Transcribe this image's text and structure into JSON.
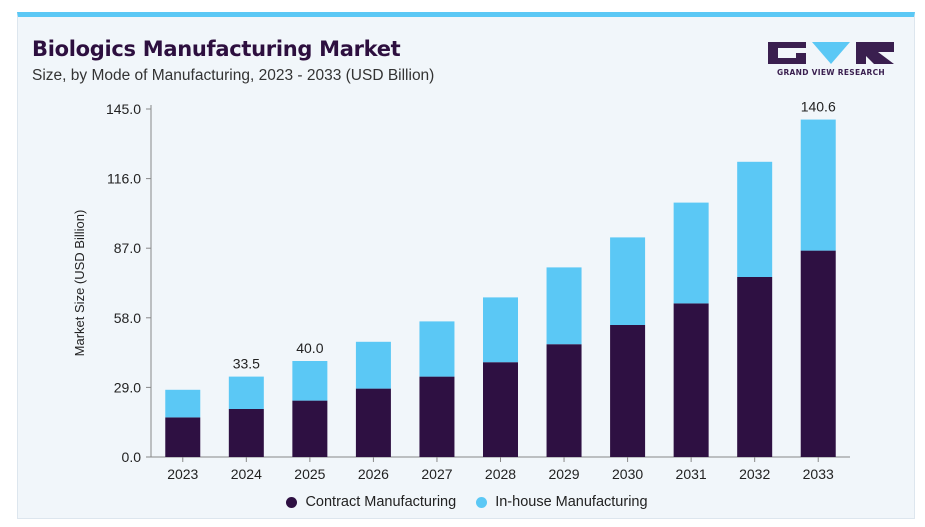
{
  "header": {
    "title": "Biologics Manufacturing Market",
    "subtitle": "Size, by Mode of Manufacturing, 2023 - 2033 (USD Billion)"
  },
  "logo": {
    "text": "GRAND VIEW RESEARCH",
    "icon": "grand-view-research-logo"
  },
  "colors": {
    "contract": "#2e1042",
    "inhouse": "#5bc8f5",
    "accent_bar": "#5bc8f5",
    "background": "#f1f6fa"
  },
  "chart_data": {
    "type": "bar",
    "stacked": true,
    "ylabel": "Market Size (USD Billion)",
    "xlabel": "",
    "ylim": [
      0,
      145
    ],
    "yticks": [
      "0.0",
      "29.0",
      "58.0",
      "87.0",
      "116.0",
      "145.0"
    ],
    "categories": [
      "2023",
      "2024",
      "2025",
      "2026",
      "2027",
      "2028",
      "2029",
      "2030",
      "2031",
      "2032",
      "2033"
    ],
    "series": [
      {
        "name": "Contract Manufacturing",
        "values": [
          16.5,
          20,
          23.5,
          28.5,
          33.5,
          39.5,
          47,
          55,
          64,
          75,
          86
        ]
      },
      {
        "name": "In-house Manufacturing",
        "values": [
          11.5,
          13.5,
          16.5,
          19.5,
          23,
          27,
          32,
          36.5,
          42,
          48,
          54.6
        ]
      }
    ],
    "annotations": [
      {
        "category": "2024",
        "label": "33.5"
      },
      {
        "category": "2025",
        "label": "40.0"
      },
      {
        "category": "2033",
        "label": "140.6"
      }
    ],
    "legend_position": "bottom",
    "grid": false
  }
}
